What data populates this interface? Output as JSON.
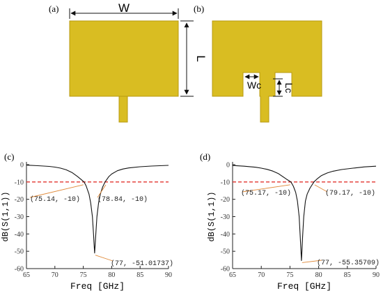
{
  "panels": {
    "a": {
      "label": "(a)",
      "dim_w": "W",
      "dim_l": "L"
    },
    "b": {
      "label": "(b)",
      "dim_wc": "Wc",
      "dim_lc": "Lc"
    }
  },
  "colors": {
    "patch": "#d9bd22",
    "patch_stroke": "#b89a10",
    "curve": "#111111",
    "threshold": "#e3342f",
    "annotation_line": "#e08a3a"
  },
  "chart_data": [
    {
      "panel_label": "(c)",
      "type": "line",
      "xlabel": "Freq [GHz]",
      "ylabel": "dB(S(1,1))",
      "xlim": [
        65,
        90
      ],
      "ylim": [
        -60,
        0
      ],
      "xticks": [
        65,
        70,
        75,
        80,
        85,
        90
      ],
      "yticks": [
        0,
        -10,
        -20,
        -30,
        -40,
        -50,
        -60
      ],
      "x_tick_labels": [
        "65",
        "70",
        "75",
        "80",
        "85",
        "90"
      ],
      "y_tick_labels": [
        "0",
        "-10",
        "-20",
        "-30",
        "-40",
        "-50",
        "-60"
      ],
      "threshold": -10,
      "series": [
        {
          "x": [
            65,
            67,
            69,
            70,
            71,
            72,
            73,
            74,
            74.5,
            75.14,
            75.5,
            76,
            76.3,
            76.6,
            76.8,
            76.9,
            77,
            77.1,
            77.2,
            77.4,
            77.7,
            78,
            78.4,
            78.84,
            79.5,
            80,
            81,
            82,
            83,
            85,
            87,
            90
          ],
          "y": [
            -0.3,
            -0.6,
            -1.0,
            -1.4,
            -2.0,
            -3.0,
            -4.5,
            -6.9,
            -8.2,
            -10,
            -12.3,
            -17,
            -22,
            -30,
            -40,
            -46,
            -51.02,
            -46,
            -40,
            -30,
            -22,
            -17,
            -13,
            -10,
            -6.9,
            -5.4,
            -3.5,
            -2.5,
            -1.9,
            -1.2,
            -0.8,
            -0.4
          ]
        }
      ],
      "annotations": [
        {
          "text": "(75.14, -10)",
          "x": 75.14,
          "y": -10
        },
        {
          "text": "(78.84, -10)",
          "x": 78.84,
          "y": -10
        },
        {
          "text": "(77, -51.01737)",
          "x": 77,
          "y": -51.01737
        }
      ]
    },
    {
      "panel_label": "(d)",
      "type": "line",
      "xlabel": "Freq [GHz]",
      "ylabel": "dB(S(1,1))",
      "xlim": [
        65,
        90
      ],
      "ylim": [
        -60,
        0
      ],
      "xticks": [
        65,
        70,
        75,
        80,
        85,
        90
      ],
      "yticks": [
        0,
        -10,
        -20,
        -30,
        -40,
        -50,
        -60
      ],
      "x_tick_labels": [
        "65",
        "70",
        "75",
        "80",
        "85",
        "90"
      ],
      "y_tick_labels": [
        "0",
        "-10",
        "-20",
        "-30",
        "-40",
        "-50",
        "-60"
      ],
      "threshold": -10,
      "series": [
        {
          "x": [
            65,
            67,
            69,
            70,
            71,
            72,
            73,
            74,
            74.5,
            75.17,
            75.6,
            76,
            76.3,
            76.6,
            76.8,
            76.9,
            77,
            77.1,
            77.2,
            77.4,
            77.7,
            78,
            78.5,
            79.17,
            79.8,
            80.5,
            81.5,
            82.5,
            84,
            86,
            88,
            90
          ],
          "y": [
            -0.5,
            -0.9,
            -1.5,
            -2.0,
            -2.7,
            -3.7,
            -5.2,
            -7.5,
            -8.6,
            -10,
            -12.5,
            -16,
            -21,
            -30,
            -42,
            -49,
            -55.36,
            -49,
            -42,
            -30,
            -21,
            -17,
            -13.5,
            -10,
            -8.0,
            -6.3,
            -4.8,
            -3.8,
            -2.8,
            -2.0,
            -1.3,
            -0.9
          ]
        }
      ],
      "annotations": [
        {
          "text": "(75.17, -10)",
          "x": 75.17,
          "y": -10
        },
        {
          "text": "(79.17, -10)",
          "x": 79.17,
          "y": -10
        },
        {
          "text": "(77, -55.35709)",
          "x": 77,
          "y": -55.35709
        }
      ]
    }
  ]
}
